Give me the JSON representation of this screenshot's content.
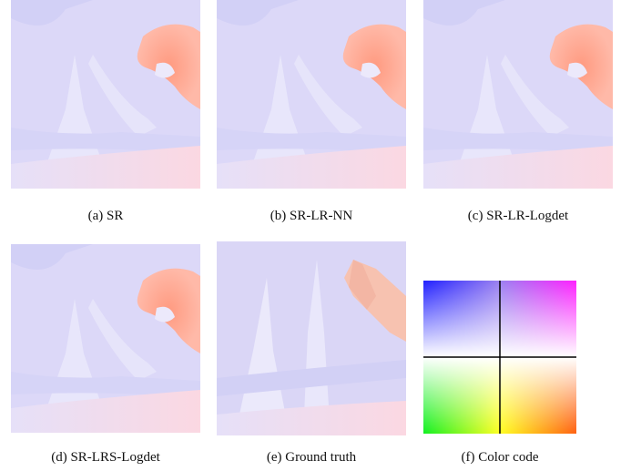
{
  "panels": [
    {
      "label": "(a)",
      "caption": "SR"
    },
    {
      "label": "(b)",
      "caption": "SR-LR-NN"
    },
    {
      "label": "(c)",
      "caption": "SR-LR-Logdet"
    },
    {
      "label": "(d)",
      "caption": "SR-LRS-Logdet"
    },
    {
      "label": "(e)",
      "caption": "Ground truth"
    },
    {
      "label": "(f)",
      "caption": "Color code"
    }
  ]
}
